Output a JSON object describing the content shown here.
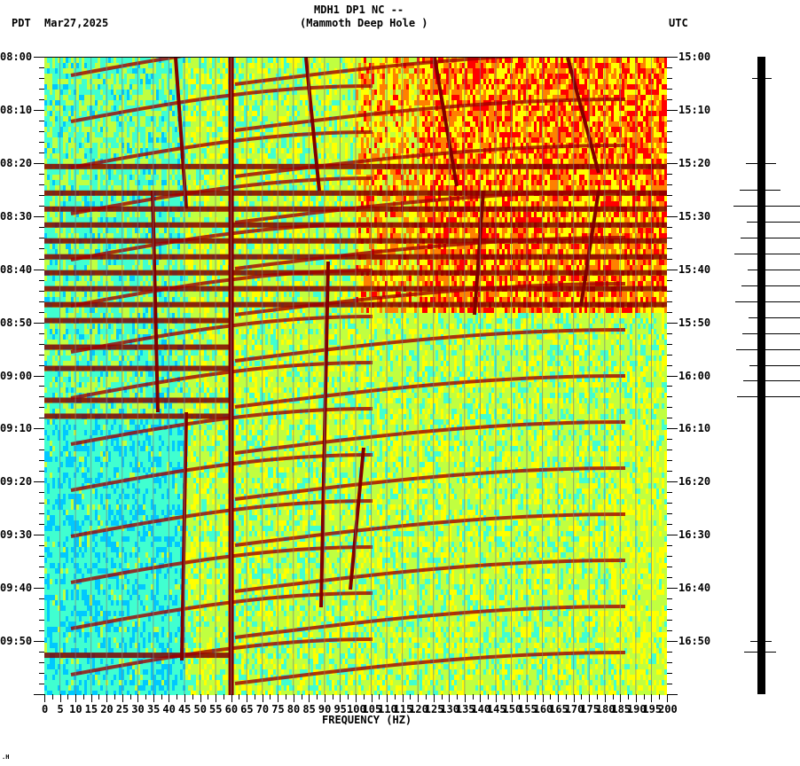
{
  "header": {
    "station": "MDH1 DP1 NC --",
    "location": "(Mammoth Deep Hole )",
    "left_tz": "PDT",
    "date": "Mar27,2025",
    "right_tz": "UTC"
  },
  "footer_mark": ".H",
  "chart_data": {
    "type": "heatmap",
    "title": "MDH1 DP1 NC -- (Mammoth Deep Hole )",
    "xlabel": "FREQUENCY (HZ)",
    "ylabel_left": "PDT",
    "ylabel_right": "UTC",
    "x_range": [
      0,
      200
    ],
    "x_ticks": [
      0,
      5,
      10,
      15,
      20,
      25,
      30,
      35,
      40,
      45,
      50,
      55,
      60,
      65,
      70,
      75,
      80,
      85,
      90,
      95,
      100,
      105,
      110,
      115,
      120,
      125,
      130,
      135,
      140,
      145,
      150,
      155,
      160,
      165,
      170,
      175,
      180,
      185,
      190,
      195,
      200
    ],
    "y_ticks_left": [
      "08:00",
      "08:10",
      "08:20",
      "08:30",
      "08:40",
      "08:50",
      "09:00",
      "09:10",
      "09:20",
      "09:30",
      "09:40",
      "09:50"
    ],
    "y_ticks_right": [
      "15:00",
      "15:10",
      "15:20",
      "15:30",
      "15:40",
      "15:50",
      "16:00",
      "16:10",
      "16:20",
      "16:30",
      "16:40",
      "16:50"
    ],
    "colormap": [
      "#0050ff",
      "#00c8ff",
      "#40ffd0",
      "#c0ff40",
      "#ffff00",
      "#ff8000",
      "#ff0000",
      "#800000"
    ],
    "persistent_lines_hz": [
      60
    ],
    "high_energy_period": {
      "start": "08:00",
      "end": "08:48",
      "freq_range_hz": [
        120,
        200
      ]
    },
    "strong_horizontal_bands_pdt": [
      "08:20",
      "08:25",
      "08:28",
      "08:31",
      "08:34",
      "08:37",
      "08:40",
      "08:43",
      "08:46",
      "08:49",
      "08:54",
      "08:58",
      "09:04",
      "09:07",
      "09:52"
    ],
    "seismogram_spikes_utc": [
      "15:04",
      "15:20",
      "15:25",
      "15:28",
      "15:31",
      "15:34",
      "15:37",
      "15:40",
      "15:43",
      "15:46",
      "15:49",
      "15:52",
      "15:55",
      "15:58",
      "16:01",
      "16:04",
      "16:50",
      "16:52"
    ]
  }
}
